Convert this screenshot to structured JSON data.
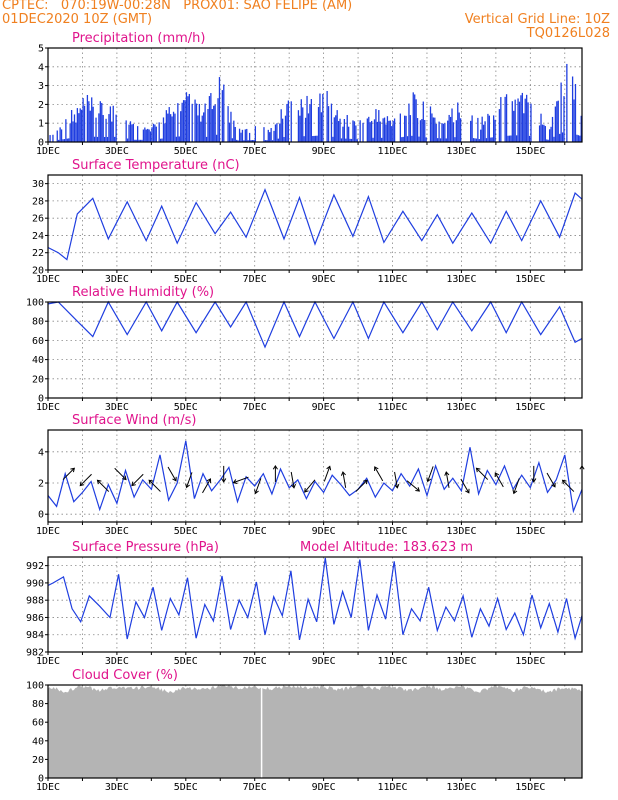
{
  "header": {
    "line1": "CPTEC:   070:19W-00:28N   PROX01: SAO FELIPE (AM)",
    "line2_left": "01DEC2020 10Z (GMT)",
    "line2_right": "Vertical Grid Line: 10Z",
    "line3_right": "TQ0126L028"
  },
  "colors": {
    "series": "#1f3ee0",
    "title": "#e0148c",
    "header": "#f08020",
    "cloud": "#b4b4b4",
    "grid": "#888888"
  },
  "chart_data": [
    {
      "type": "bar",
      "title": "Precipitation (mm/h)",
      "x_tick_labels": [
        "1DEC",
        "3DEC",
        "5DEC",
        "7DEC",
        "9DEC",
        "11DEC",
        "13DEC",
        "15DEC"
      ],
      "x_range_days": [
        0,
        15.5
      ],
      "ylim": [
        0,
        5
      ],
      "y_ticks": [
        0,
        1,
        2,
        3,
        4,
        5
      ],
      "grid": true,
      "series_envelope": {
        "days": [
          0,
          0.5,
          1,
          1.5,
          2,
          2.5,
          3,
          3.5,
          4,
          4.5,
          5,
          5.5,
          6,
          6.5,
          7,
          7.5,
          8,
          8.5,
          9,
          9.5,
          10,
          10.5,
          11,
          11.5,
          12,
          12.5,
          13,
          13.5,
          14,
          14.5,
          15,
          15.5
        ],
        "peak_mm_h": [
          0.3,
          1.4,
          2.6,
          2.2,
          2.3,
          1.0,
          0.9,
          2.0,
          2.8,
          2.0,
          3.6,
          0.7,
          0.9,
          0.8,
          2.9,
          2.5,
          3.0,
          1.6,
          1.2,
          2.0,
          1.5,
          2.8,
          2.0,
          1.5,
          2.6,
          1.3,
          2.3,
          3.0,
          2.7,
          1.0,
          4.9,
          2.4
        ]
      }
    },
    {
      "type": "line",
      "title": "Surface Temperature (nC)",
      "x_tick_labels": [
        "1DEC",
        "3DEC",
        "5DEC",
        "7DEC",
        "9DEC",
        "11DEC",
        "13DEC",
        "15DEC"
      ],
      "ylim": [
        20,
        31
      ],
      "y_ticks": [
        20,
        22,
        24,
        26,
        28,
        30
      ],
      "grid": true,
      "series": [
        {
          "x": [
            0,
            0.3,
            0.55,
            0.85,
            1.3,
            1.75,
            2.3,
            2.85,
            3.3,
            3.75,
            4.3,
            4.85,
            5.3,
            5.75,
            6.3,
            6.85,
            7.3,
            7.75,
            8.3,
            8.85,
            9.3,
            9.75,
            10.3,
            10.85,
            11.3,
            11.75,
            12.3,
            12.85,
            13.3,
            13.75,
            14.3,
            14.85,
            15.3,
            15.5
          ],
          "y": [
            22.6,
            22.0,
            21.2,
            26.5,
            28.3,
            23.6,
            27.9,
            23.4,
            27.4,
            23.1,
            27.8,
            24.2,
            26.7,
            23.8,
            29.3,
            23.6,
            28.4,
            23.0,
            28.7,
            23.9,
            28.5,
            23.2,
            26.8,
            23.4,
            26.4,
            23.1,
            26.6,
            23.1,
            26.8,
            23.4,
            28.0,
            23.8,
            28.9,
            28.2
          ]
        }
      ]
    },
    {
      "type": "line",
      "title": "Relative Humidity (%)",
      "x_tick_labels": [
        "1DEC",
        "3DEC",
        "5DEC",
        "7DEC",
        "9DEC",
        "11DEC",
        "13DEC",
        "15DEC"
      ],
      "ylim": [
        0,
        100
      ],
      "y_ticks": [
        0,
        20,
        40,
        60,
        80,
        100
      ],
      "grid": true,
      "series": [
        {
          "x": [
            0,
            0.3,
            0.85,
            1.3,
            1.75,
            2.3,
            2.85,
            3.3,
            3.75,
            4.3,
            4.85,
            5.3,
            5.75,
            6.3,
            6.85,
            7.3,
            7.75,
            8.3,
            8.85,
            9.3,
            9.75,
            10.3,
            10.85,
            11.3,
            11.75,
            12.3,
            12.85,
            13.3,
            13.75,
            14.3,
            14.85,
            15.3,
            15.5
          ],
          "y": [
            98,
            100,
            80,
            64,
            100,
            66,
            100,
            70,
            100,
            68,
            100,
            74,
            100,
            53,
            100,
            64,
            100,
            62,
            100,
            62,
            100,
            68,
            100,
            71,
            100,
            70,
            100,
            68,
            100,
            66,
            95,
            58,
            62
          ]
        }
      ]
    },
    {
      "type": "line",
      "title": "Surface Wind (m/s)",
      "x_tick_labels": [
        "1DEC",
        "3DEC",
        "5DEC",
        "7DEC",
        "9DEC",
        "11DEC",
        "13DEC",
        "15DEC"
      ],
      "ylim": [
        -0.5,
        5.4
      ],
      "y_ticks": [
        0,
        2,
        4
      ],
      "grid": true,
      "series": [
        {
          "x": [
            0,
            0.25,
            0.5,
            0.75,
            1.0,
            1.25,
            1.5,
            1.75,
            2.0,
            2.25,
            2.5,
            2.75,
            3.0,
            3.25,
            3.5,
            3.75,
            4.0,
            4.25,
            4.5,
            4.75,
            5.0,
            5.25,
            5.5,
            5.75,
            6.0,
            6.25,
            6.5,
            6.75,
            7.0,
            7.25,
            7.5,
            7.75,
            8.0,
            8.25,
            8.5,
            8.75,
            9.0,
            9.25,
            9.5,
            9.75,
            10.0,
            10.25,
            10.5,
            10.75,
            11.0,
            11.25,
            11.5,
            11.75,
            12.0,
            12.25,
            12.5,
            12.75,
            13.0,
            13.25,
            13.5,
            13.75,
            14.0,
            14.25,
            14.5,
            14.75,
            15.0,
            15.25,
            15.5
          ],
          "y": [
            1.2,
            0.5,
            2.6,
            0.8,
            1.4,
            2.1,
            0.3,
            1.9,
            0.7,
            2.8,
            1.1,
            2.2,
            1.6,
            3.8,
            0.9,
            2.0,
            4.7,
            1.0,
            2.6,
            1.5,
            2.2,
            3.0,
            0.8,
            2.4,
            1.8,
            2.6,
            1.3,
            2.9,
            1.7,
            2.2,
            1.0,
            2.1,
            1.4,
            2.5,
            1.9,
            1.2,
            1.6,
            2.3,
            1.1,
            2.0,
            1.5,
            2.6,
            1.8,
            2.9,
            1.2,
            3.1,
            1.6,
            2.3,
            1.5,
            4.3,
            1.3,
            2.8,
            1.9,
            3.1,
            1.6,
            2.5,
            1.7,
            3.3,
            1.4,
            2.2,
            3.8,
            0.2,
            1.6
          ]
        }
      ],
      "arrows": {
        "days": [
          0.6,
          1.1,
          1.6,
          2.1,
          2.6,
          3.1,
          3.6,
          4.1,
          4.6,
          5.1,
          5.6,
          6.1,
          6.6,
          7.1,
          7.6,
          8.1,
          8.6,
          9.1,
          9.6,
          10.1,
          10.6,
          11.1,
          11.6,
          12.1,
          12.6,
          13.1,
          13.6,
          14.1,
          14.6,
          15.1,
          15.5
        ],
        "direction_deg": [
          45,
          225,
          135,
          315,
          225,
          135,
          300,
          250,
          60,
          270,
          200,
          250,
          90,
          280,
          230,
          70,
          100,
          45,
          120,
          280,
          320,
          250,
          100,
          300,
          135,
          120,
          250,
          270,
          300,
          135,
          90
        ]
      }
    },
    {
      "type": "line",
      "title": "Surface Pressure (hPa)",
      "annotation": "Model Altitude: 183.623 m",
      "x_tick_labels": [
        "1DEC",
        "3DEC",
        "5DEC",
        "7DEC",
        "9DEC",
        "11DEC",
        "13DEC",
        "15DEC"
      ],
      "ylim": [
        982,
        993
      ],
      "y_ticks": [
        982,
        984,
        986,
        988,
        990,
        992
      ],
      "grid": true,
      "series": [
        {
          "x": [
            0,
            0.15,
            0.45,
            0.7,
            0.95,
            1.2,
            1.5,
            1.8,
            2.05,
            2.3,
            2.55,
            2.8,
            3.05,
            3.3,
            3.55,
            3.8,
            4.05,
            4.3,
            4.55,
            4.8,
            5.05,
            5.3,
            5.55,
            5.8,
            6.05,
            6.3,
            6.55,
            6.8,
            7.05,
            7.3,
            7.55,
            7.8,
            8.05,
            8.3,
            8.55,
            8.8,
            9.05,
            9.3,
            9.55,
            9.8,
            10.05,
            10.3,
            10.55,
            10.8,
            11.05,
            11.3,
            11.55,
            11.8,
            12.05,
            12.3,
            12.55,
            12.8,
            13.05,
            13.3,
            13.55,
            13.8,
            14.05,
            14.3,
            14.55,
            14.8,
            15.05,
            15.3,
            15.5
          ],
          "y": [
            989.7,
            990.0,
            990.7,
            987.0,
            985.5,
            988.5,
            987.3,
            986.0,
            991.0,
            983.5,
            987.8,
            986.0,
            989.5,
            984.5,
            988.2,
            986.3,
            990.6,
            983.6,
            987.5,
            985.6,
            990.8,
            984.6,
            988.0,
            986.0,
            990.1,
            984.0,
            988.4,
            986.2,
            991.4,
            983.4,
            988.1,
            985.5,
            992.9,
            985.2,
            989.0,
            986.0,
            992.7,
            984.5,
            988.6,
            985.8,
            992.5,
            984.0,
            987.0,
            985.6,
            989.5,
            984.5,
            987.2,
            985.6,
            988.5,
            983.7,
            987.0,
            985.0,
            988.2,
            984.6,
            986.5,
            984.0,
            988.6,
            984.8,
            987.6,
            984.3,
            988.2,
            983.6,
            986.2
          ]
        }
      ]
    },
    {
      "type": "area",
      "title": "Cloud Cover (%)",
      "x_tick_labels": [
        "1DEC",
        "3DEC",
        "5DEC",
        "7DEC",
        "9DEC",
        "11DEC",
        "13DEC",
        "15DEC"
      ],
      "ylim": [
        0,
        100
      ],
      "y_ticks": [
        0,
        20,
        40,
        60,
        80,
        100
      ],
      "grid": true,
      "series": [
        {
          "x": [
            0,
            0.5,
            1,
            1.5,
            2,
            2.5,
            3,
            3.5,
            4,
            4.5,
            5,
            5.5,
            6,
            6.5,
            7,
            7.5,
            8,
            8.5,
            9,
            9.5,
            10,
            10.5,
            11,
            11.5,
            12,
            12.5,
            13,
            13.5,
            14,
            14.5,
            15,
            15.5
          ],
          "y": [
            98,
            93,
            99,
            94,
            98,
            96,
            99,
            92,
            97,
            95,
            99,
            97,
            98,
            96,
            99,
            97,
            98,
            95,
            99,
            96,
            98,
            94,
            99,
            95,
            98,
            93,
            99,
            94,
            98,
            93,
            97,
            94
          ]
        }
      ]
    }
  ]
}
